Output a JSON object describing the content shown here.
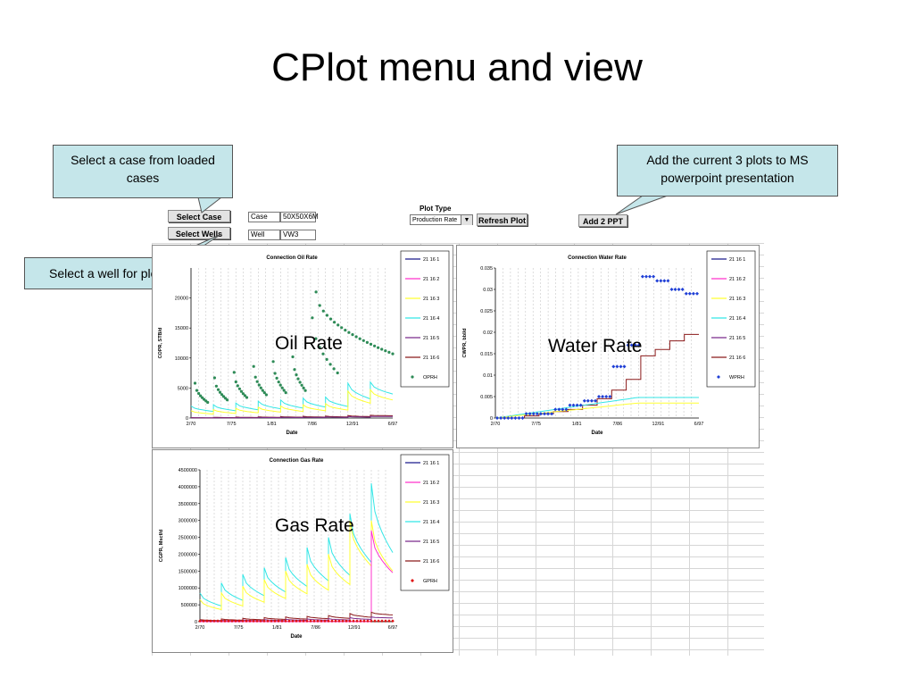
{
  "slide": {
    "title": "CPlot menu and view"
  },
  "callouts": {
    "case": "Select a case from loaded cases",
    "wells": "Select a well for ploting",
    "ppt": "Add the current 3 plots to MS powerpoint presentation"
  },
  "toolbar": {
    "select_case": "Select Case",
    "select_wells": "Select Wells",
    "case_label": "Case",
    "case_value": "50X50X6M",
    "well_label": "Well",
    "well_value": "VW3",
    "plot_type_label": "Plot Type",
    "plot_type_value": "Production Rate",
    "refresh": "Refresh Plot",
    "add_ppt": "Add 2 PPT"
  },
  "overlays": {
    "oil": "Oil Rate",
    "water": "Water Rate",
    "gas": "Gas Rate"
  },
  "colors": {
    "s1": "#1a1a8c",
    "s2": "#ff33cc",
    "s3": "#ffff33",
    "s4": "#33e6e6",
    "s5": "#7a2a8c",
    "s6": "#8b1a1a",
    "oil_hist": "#2e8b57",
    "water_hist": "#1f3fd6",
    "gas_hist": "#e01010"
  },
  "chart_data": [
    {
      "type": "line",
      "title": "Connection Oil Rate",
      "xlabel": "Date",
      "ylabel": "COPR, STB/d",
      "x_ticks": [
        "2/70",
        "7/75",
        "1/81",
        "7/86",
        "12/91",
        "6/97"
      ],
      "ylim": [
        0,
        25000
      ],
      "y_ticks": [
        "0",
        "5000",
        "10000",
        "15000",
        "20000"
      ],
      "legend": [
        "21  16  1",
        "21  16  2",
        "21  16  3",
        "21  16  4",
        "21  16  5",
        "21  16  6",
        "OPRH"
      ],
      "history": {
        "name": "OPRH",
        "start_at": 4200,
        "peaks": [
          5800,
          6700,
          7600,
          8600,
          9400,
          10200,
          16700,
          21000
        ],
        "end_value": 10700
      },
      "series": [
        {
          "name": "21  16  4",
          "peaks": [
            2000,
            2200,
            2500,
            2800,
            3000,
            3300,
            3500,
            5800,
            6000
          ],
          "end_value": 4000
        },
        {
          "name": "21  16  3",
          "peaks": [
            1200,
            1400,
            1600,
            1800,
            2000,
            2200,
            2400,
            4500,
            4700
          ],
          "end_value": 3000
        },
        {
          "name": "21  16  6",
          "peaks": [
            80,
            120,
            160,
            200,
            240,
            280,
            330,
            420,
            460
          ],
          "end_value": 380
        },
        {
          "name": "21  16  5",
          "peaks": [
            40,
            60,
            80,
            110,
            140,
            170,
            200,
            260,
            280
          ],
          "end_value": 250
        }
      ]
    },
    {
      "type": "line",
      "title": "Connection Water Rate",
      "xlabel": "Date",
      "ylabel": "CWPR, bbl/d",
      "x_ticks": [
        "2/70",
        "7/75",
        "1/81",
        "7/86",
        "12/91",
        "6/97"
      ],
      "ylim": [
        0,
        0.035
      ],
      "y_ticks": [
        "0",
        "0.005",
        "0.01",
        "0.015",
        "0.02",
        "0.025",
        "0.03",
        "0.035"
      ],
      "legend": [
        "21  16  1",
        "21  16  2",
        "21  16  3",
        "21  16  4",
        "21  16  5",
        "21  16  6",
        "WPRH"
      ],
      "history": {
        "name": "WPRH",
        "steps": [
          0.0,
          0.0,
          0.001,
          0.001,
          0.002,
          0.003,
          0.004,
          0.005,
          0.012,
          0.017,
          0.033,
          0.032,
          0.03,
          0.029
        ]
      },
      "series": [
        {
          "name": "21  16  6",
          "steps": [
            0.0,
            0.0,
            0.0005,
            0.001,
            0.0015,
            0.002,
            0.003,
            0.0045,
            0.0065,
            0.009,
            0.0145,
            0.016,
            0.018,
            0.0195
          ]
        },
        {
          "name": "21  16  4",
          "level": 0.0048
        },
        {
          "name": "21  16  3",
          "level": 0.0035
        }
      ]
    },
    {
      "type": "line",
      "title": "Connection Gas Rate",
      "xlabel": "Date",
      "ylabel": "CGPR, Mscf/d",
      "x_ticks": [
        "2/70",
        "7/75",
        "1/81",
        "7/86",
        "12/91",
        "6/97"
      ],
      "ylim": [
        0,
        4500000
      ],
      "y_ticks": [
        "0",
        "500000",
        "1000000",
        "1500000",
        "2000000",
        "2500000",
        "3000000",
        "3500000",
        "4000000",
        "4500000"
      ],
      "legend": [
        "21  16  1",
        "21  16  2",
        "21  16  3",
        "21  16  4",
        "21  16  5",
        "21  16  6",
        "GPRH"
      ],
      "history": {
        "name": "GPRH",
        "level": 20000
      },
      "series": [
        {
          "name": "21  16  4",
          "peaks": [
            850000,
            1150000,
            1400000,
            1600000,
            1900000,
            2200000,
            2500000,
            3200000,
            4100000
          ],
          "end_value": 2050000
        },
        {
          "name": "21  16  3",
          "peaks": [
            650000,
            850000,
            1050000,
            1250000,
            1500000,
            1700000,
            2000000,
            3000000,
            3000000
          ],
          "end_value": 1500000
        },
        {
          "name": "21  16  2",
          "peaks": [
            0,
            0,
            0,
            0,
            0,
            0,
            0,
            0,
            2700000
          ],
          "end_value": 1450000
        },
        {
          "name": "21  16  6",
          "peaks": [
            60000,
            80000,
            100000,
            120000,
            140000,
            160000,
            180000,
            240000,
            280000
          ],
          "end_value": 200000
        },
        {
          "name": "21  16  5",
          "peaks": [
            30000,
            40000,
            50000,
            60000,
            70000,
            80000,
            90000,
            120000,
            140000
          ],
          "end_value": 110000
        }
      ]
    }
  ]
}
